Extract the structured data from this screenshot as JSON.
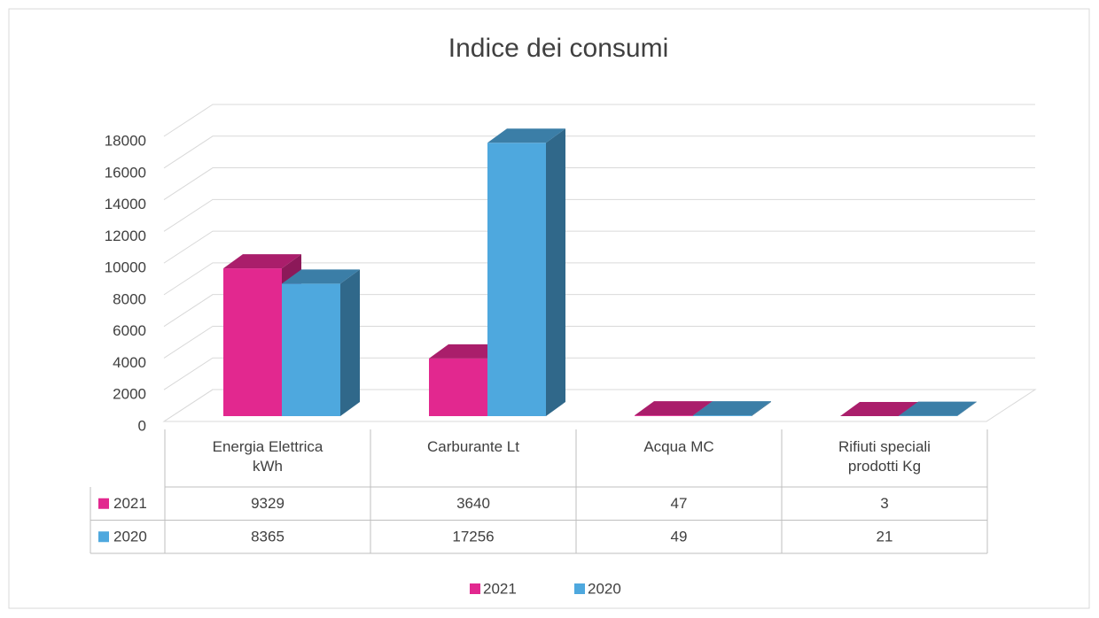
{
  "chart_data": {
    "type": "bar3d",
    "title": "Indice dei consumi",
    "categories": [
      "Energia Elettrica kWh",
      "Carburante Lt",
      "Acqua MC",
      "Rifiuti speciali prodotti Kg"
    ],
    "series": [
      {
        "name": "2021",
        "color": "#e2288f",
        "values": [
          9329,
          3640,
          47,
          3
        ]
      },
      {
        "name": "2020",
        "color": "#4ea8de",
        "values": [
          8365,
          17256,
          49,
          21
        ]
      }
    ],
    "ylim": [
      0,
      18000
    ],
    "yticks": [
      0,
      2000,
      4000,
      6000,
      8000,
      10000,
      12000,
      14000,
      16000,
      18000
    ],
    "grid": true,
    "legend": "bottom",
    "data_table": true
  }
}
